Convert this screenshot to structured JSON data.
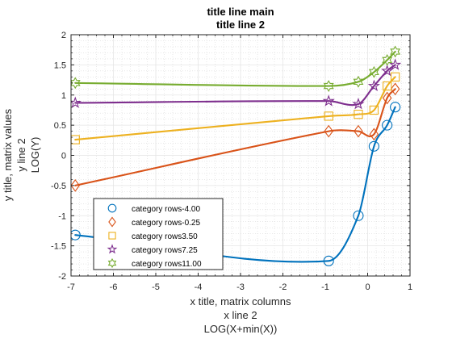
{
  "chart_data": {
    "type": "line",
    "title": [
      "title line main",
      "title line 2"
    ],
    "xlabel": [
      "x title, matrix columns",
      "x line 2",
      "LOG(X+min(X))"
    ],
    "ylabel": [
      "y title, matrix values",
      "y line 2",
      "LOG(Y)"
    ],
    "xlim": [
      -7,
      1
    ],
    "ylim": [
      -2,
      2
    ],
    "xticks": [
      -7,
      -6,
      -5,
      -4,
      -3,
      -2,
      -1,
      0,
      1
    ],
    "yticks": [
      -2,
      -1.5,
      -1,
      -0.5,
      0,
      0.5,
      1,
      1.5,
      2
    ],
    "xtick_labels": [
      "-7",
      "-6",
      "-5",
      "-4",
      "-3",
      "-2",
      "-1",
      "0",
      "1"
    ],
    "ytick_labels": [
      "-2",
      "-1.5",
      "-1",
      "-0.5",
      "0",
      "0.5",
      "1",
      "1.5",
      "2"
    ],
    "grid": true,
    "minor_grid": true,
    "legend_position": "bottom-left",
    "x": [
      -6.9,
      -0.92,
      -0.22,
      0.15,
      0.46,
      0.65
    ],
    "series": [
      {
        "name": "category rows-4.00",
        "marker": "circle",
        "color": "#0072BD",
        "values": [
          -1.32,
          -1.75,
          -1.0,
          0.15,
          0.5,
          0.8
        ]
      },
      {
        "name": "category rows-0.25",
        "marker": "diamond",
        "color": "#D95319",
        "values": [
          -0.5,
          0.4,
          0.4,
          0.35,
          0.95,
          1.1
        ]
      },
      {
        "name": "category rows3.50",
        "marker": "square",
        "color": "#EDB120",
        "values": [
          0.26,
          0.65,
          0.68,
          0.75,
          1.15,
          1.3
        ]
      },
      {
        "name": "category rows7.25",
        "marker": "pentagram",
        "color": "#7E2F8E",
        "values": [
          0.87,
          0.9,
          0.85,
          1.15,
          1.4,
          1.5
        ]
      },
      {
        "name": "category rows11.00",
        "marker": "hexagram",
        "color": "#77AC30",
        "values": [
          1.2,
          1.15,
          1.22,
          1.38,
          1.58,
          1.72
        ]
      }
    ]
  }
}
